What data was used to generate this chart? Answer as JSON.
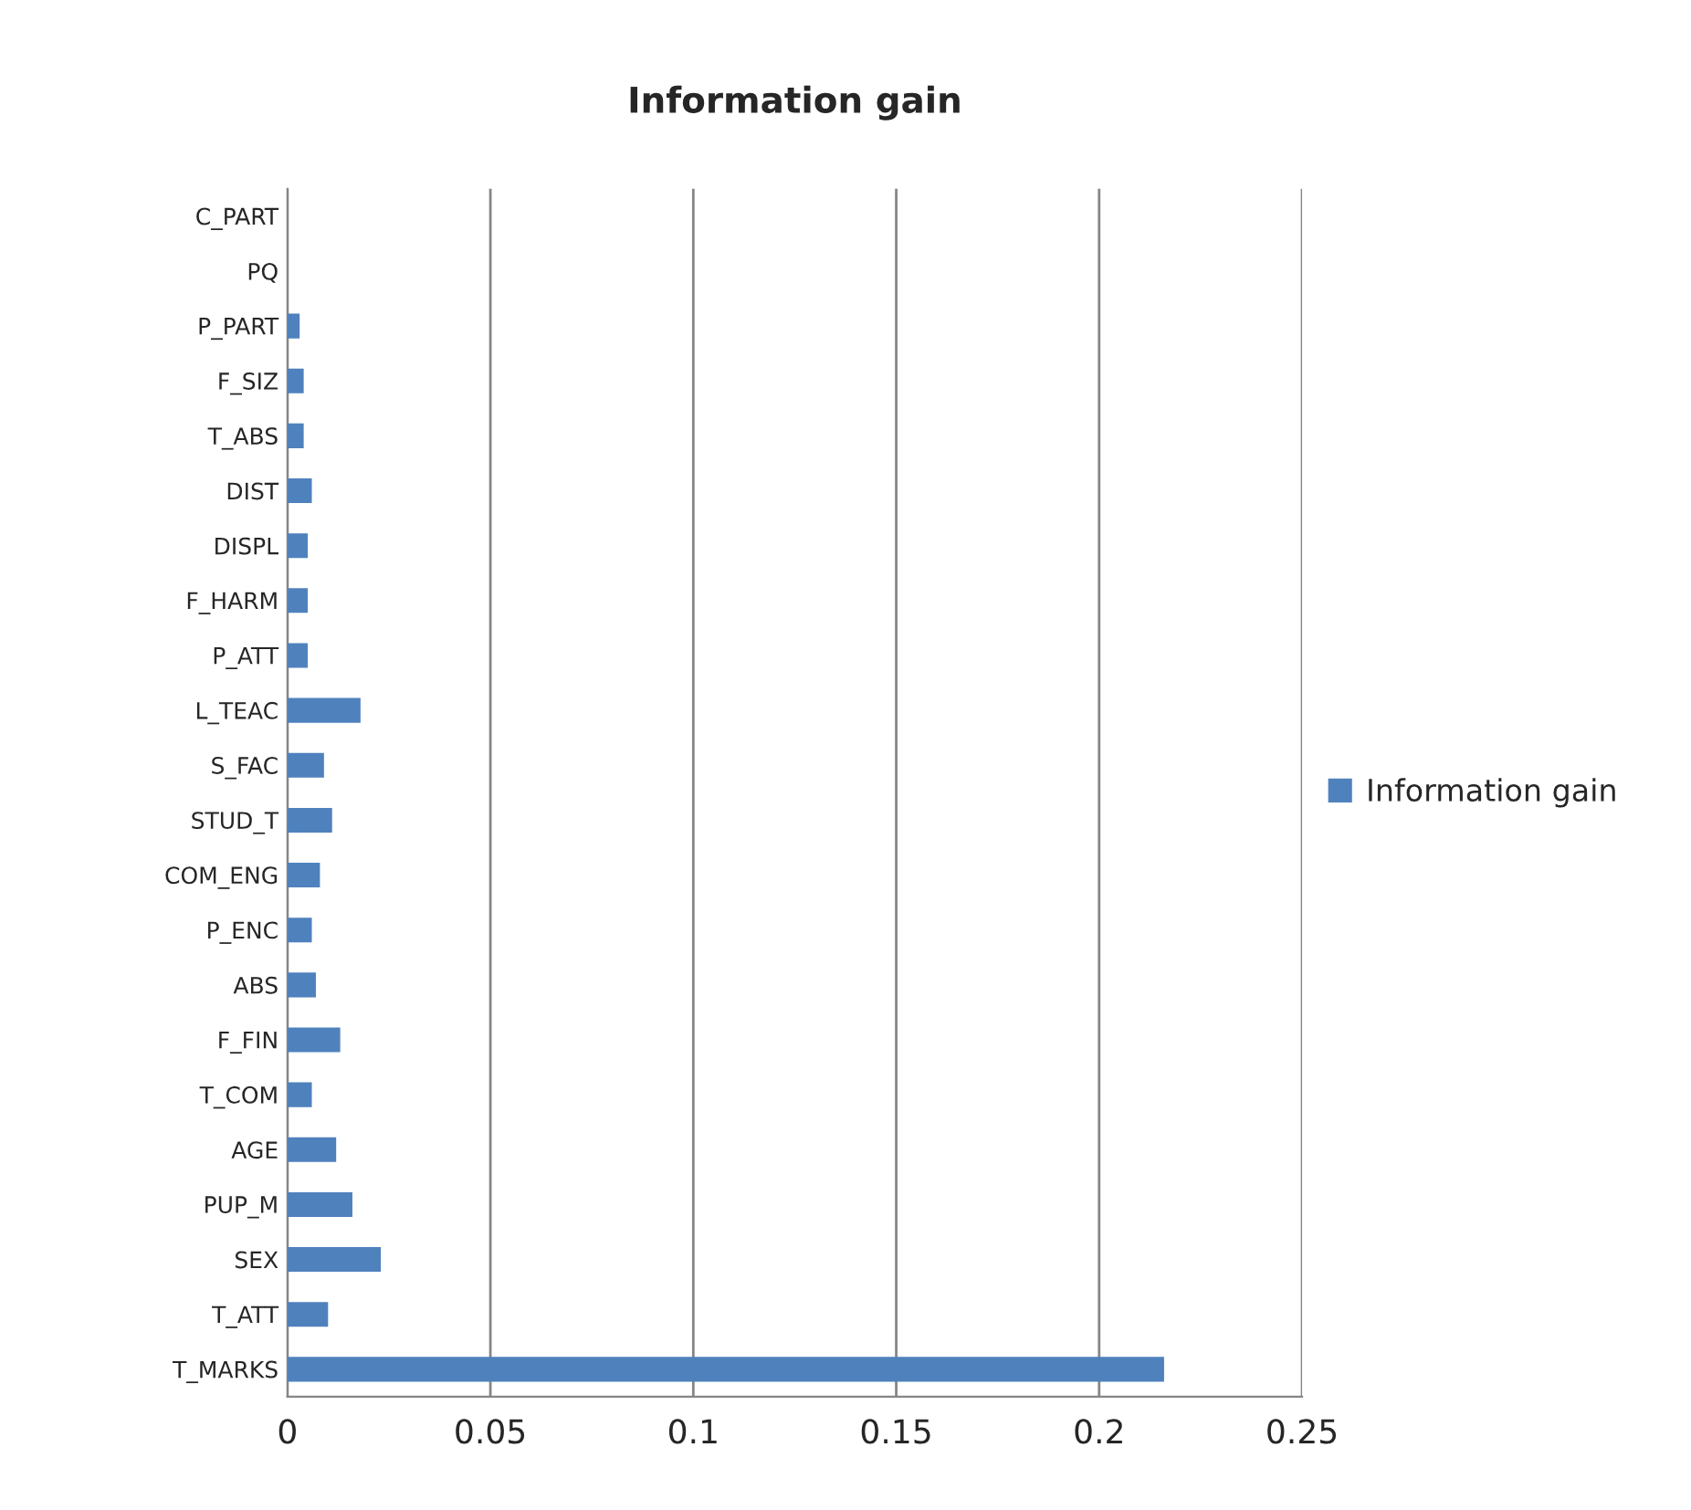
{
  "chart_data": {
    "type": "bar",
    "orientation": "horizontal",
    "title": "Information gain",
    "categories": [
      "C_PART",
      "PQ",
      "P_PART",
      "F_SIZ",
      "T_ABS",
      "DIST",
      "DISPL",
      "F_HARM",
      "P_ATT",
      "L_TEAC",
      "S_FAC",
      "STUD_T",
      "COM_ENG",
      "P_ENC",
      "ABS",
      "F_FIN",
      "T_COM",
      "AGE",
      "PUP_M",
      "SEX",
      "T_ATT",
      "T_MARKS"
    ],
    "series": [
      {
        "name": "Information gain",
        "color": "#4f81bd",
        "values": [
          0,
          0,
          0.003,
          0.004,
          0.004,
          0.006,
          0.005,
          0.005,
          0.005,
          0.018,
          0.009,
          0.011,
          0.008,
          0.006,
          0.007,
          0.013,
          0.006,
          0.012,
          0.016,
          0.023,
          0.01,
          0.216
        ]
      }
    ],
    "xlim": [
      0,
      0.25
    ],
    "xticks": [
      0,
      0.05,
      0.1,
      0.15,
      0.2,
      0.25
    ],
    "grid": "x",
    "legend": "right"
  }
}
